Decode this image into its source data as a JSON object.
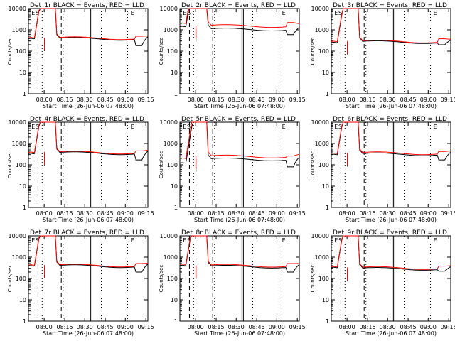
{
  "chart_data": [
    {
      "type": "line",
      "title": "Det_1r BLACK = Events, RED = LLD",
      "xlabel": "Start Time (26-Jun-06 07:48:00)",
      "ylabel": "Counts/sec",
      "x_ticks": [
        "08:00",
        "08:15",
        "08:30",
        "08:45",
        "09:00",
        "09:15"
      ],
      "y_ticks": [
        "1",
        "10",
        "100",
        "1000",
        "10000"
      ],
      "ylim": [
        1,
        10000
      ],
      "y_scale": "log",
      "markers": [
        "S",
        "E",
        "E"
      ],
      "series": [
        {
          "name": "Events",
          "color": "#000000",
          "baseline": 400,
          "pre": 380,
          "tail": 180
        },
        {
          "name": "LLD",
          "color": "#ff0000",
          "baseline": 430,
          "pre": 420,
          "tail": 500
        }
      ]
    },
    {
      "type": "line",
      "title": "Det_2r BLACK = Events, RED = LLD",
      "xlabel": "Start Time (26-Jun-06 07:48:00)",
      "ylabel": "Counts/sec",
      "x_ticks": [
        "08:00",
        "08:15",
        "08:30",
        "08:45",
        "09:00",
        "09:15"
      ],
      "y_ticks": [
        "1",
        "10",
        "100",
        "1000",
        "10000"
      ],
      "ylim": [
        1,
        10000
      ],
      "y_scale": "log",
      "markers": [
        "S",
        "E",
        "E"
      ],
      "series": [
        {
          "name": "Events",
          "color": "#000000",
          "baseline": 1100,
          "pre": 1400,
          "tail": 600
        },
        {
          "name": "LLD",
          "color": "#ff0000",
          "baseline": 1600,
          "pre": 2000,
          "tail": 2200
        }
      ]
    },
    {
      "type": "line",
      "title": "Det_3r BLACK = Events, RED = LLD",
      "xlabel": "Start Time (26-Jun-06 07:48:00)",
      "ylabel": "Counts/sec",
      "x_ticks": [
        "08:00",
        "08:15",
        "08:30",
        "08:45",
        "09:00",
        "09:15"
      ],
      "y_ticks": [
        "1",
        "10",
        "100",
        "1000",
        "10000"
      ],
      "ylim": [
        1,
        10000
      ],
      "y_scale": "log",
      "markers": [
        "S",
        "E",
        "E"
      ],
      "series": [
        {
          "name": "Events",
          "color": "#000000",
          "baseline": 280,
          "pre": 250,
          "tail": 200
        },
        {
          "name": "LLD",
          "color": "#ff0000",
          "baseline": 300,
          "pre": 280,
          "tail": 380
        }
      ]
    },
    {
      "type": "line",
      "title": "Det_4r BLACK = Events, RED = LLD",
      "xlabel": "Start Time (26-Jun-06 07:48:00)",
      "ylabel": "Counts/sec",
      "x_ticks": [
        "08:00",
        "08:15",
        "08:30",
        "08:45",
        "09:00",
        "09:15"
      ],
      "y_ticks": [
        "1",
        "10",
        "100",
        "1000",
        "10000"
      ],
      "ylim": [
        1,
        10000
      ],
      "y_scale": "log",
      "markers": [
        "S",
        "E",
        "E"
      ],
      "series": [
        {
          "name": "Events",
          "color": "#000000",
          "baseline": 370,
          "pre": 330,
          "tail": 170
        },
        {
          "name": "LLD",
          "color": "#ff0000",
          "baseline": 400,
          "pre": 380,
          "tail": 450
        }
      ]
    },
    {
      "type": "line",
      "title": "Det_5r BLACK = Events, RED = LLD",
      "xlabel": "Start Time (26-Jun-06 07:48:00)",
      "ylabel": "Counts/sec",
      "x_ticks": [
        "08:00",
        "08:15",
        "08:30",
        "08:45",
        "09:00",
        "09:15"
      ],
      "y_ticks": [
        "1",
        "10",
        "100",
        "1000",
        "10000"
      ],
      "ylim": [
        1,
        10000
      ],
      "y_scale": "log",
      "markers": [
        "S",
        "E",
        "E"
      ],
      "series": [
        {
          "name": "Events",
          "color": "#000000",
          "baseline": 190,
          "pre": 120,
          "tail": 80
        },
        {
          "name": "LLD",
          "color": "#ff0000",
          "baseline": 260,
          "pre": 200,
          "tail": 260
        }
      ]
    },
    {
      "type": "line",
      "title": "Det_6r BLACK = Events, RED = LLD",
      "xlabel": "Start Time (26-Jun-06 07:48:00)",
      "ylabel": "Counts/sec",
      "x_ticks": [
        "08:00",
        "08:15",
        "08:30",
        "08:45",
        "09:00",
        "09:15"
      ],
      "y_ticks": [
        "1",
        "10",
        "100",
        "1000",
        "10000"
      ],
      "ylim": [
        1,
        10000
      ],
      "y_scale": "log",
      "markers": [
        "S",
        "E",
        "E"
      ],
      "series": [
        {
          "name": "Events",
          "color": "#000000",
          "baseline": 330,
          "pre": 300,
          "tail": 170
        },
        {
          "name": "LLD",
          "color": "#ff0000",
          "baseline": 370,
          "pre": 340,
          "tail": 420
        }
      ]
    },
    {
      "type": "line",
      "title": "Det_7r BLACK = Events, RED = LLD",
      "xlabel": "Start Time (26-Jun-06 07:48:00)",
      "ylabel": "Counts/sec",
      "x_ticks": [
        "08:00",
        "08:15",
        "08:30",
        "08:45",
        "09:00",
        "09:15"
      ],
      "y_ticks": [
        "1",
        "10",
        "100",
        "1000",
        "10000"
      ],
      "ylim": [
        1,
        10000
      ],
      "y_scale": "log",
      "markers": [
        "S",
        "E",
        "E"
      ],
      "series": [
        {
          "name": "Events",
          "color": "#000000",
          "baseline": 400,
          "pre": 380,
          "tail": 200
        },
        {
          "name": "LLD",
          "color": "#ff0000",
          "baseline": 430,
          "pre": 420,
          "tail": 500
        }
      ]
    },
    {
      "type": "line",
      "title": "Det_8r BLACK = Events, RED = LLD",
      "xlabel": "Start Time (26-Jun-06 07:48:00)",
      "ylabel": "Counts/sec",
      "x_ticks": [
        "08:00",
        "08:15",
        "08:30",
        "08:45",
        "09:00",
        "09:15"
      ],
      "y_ticks": [
        "1",
        "10",
        "100",
        "1000",
        "10000"
      ],
      "ylim": [
        1,
        10000
      ],
      "y_scale": "log",
      "markers": [
        "S",
        "E",
        "E"
      ],
      "series": [
        {
          "name": "Events",
          "color": "#000000",
          "baseline": 380,
          "pre": 400,
          "tail": 200
        },
        {
          "name": "LLD",
          "color": "#ff0000",
          "baseline": 420,
          "pre": 450,
          "tail": 500
        }
      ]
    },
    {
      "type": "line",
      "title": "Det_9r BLACK = Events, RED = LLD",
      "xlabel": "Start Time (26-Jun-06 07:48:00)",
      "ylabel": "Counts/sec",
      "x_ticks": [
        "08:00",
        "08:15",
        "08:30",
        "08:45",
        "09:00",
        "09:15"
      ],
      "y_ticks": [
        "1",
        "10",
        "100",
        "1000",
        "10000"
      ],
      "ylim": [
        1,
        10000
      ],
      "y_scale": "log",
      "markers": [
        "S",
        "E",
        "E"
      ],
      "series": [
        {
          "name": "Events",
          "color": "#000000",
          "baseline": 300,
          "pre": 320,
          "tail": 220
        },
        {
          "name": "LLD",
          "color": "#ff0000",
          "baseline": 330,
          "pre": 350,
          "tail": 380
        }
      ]
    }
  ]
}
